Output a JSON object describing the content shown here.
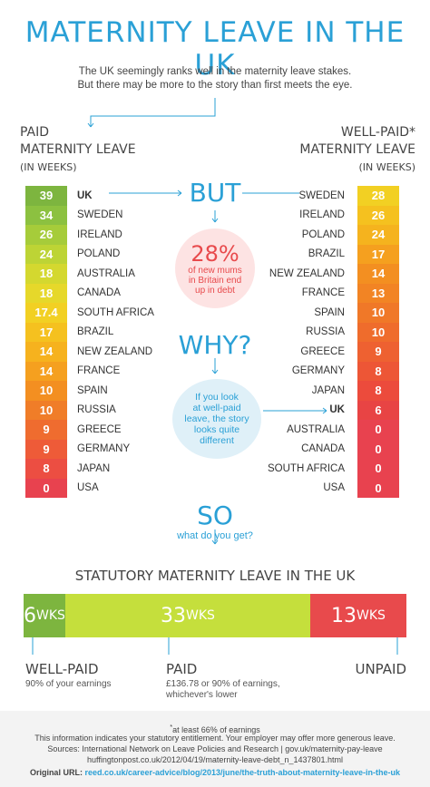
{
  "title": "MATERNITY LEAVE IN THE UK",
  "intro": [
    "The UK seemingly ranks well in the maternity leave stakes.",
    "But there may be more to the story than first meets the eye."
  ],
  "left_header": {
    "line1": "PAID",
    "line2": "MATERNITY LEAVE",
    "line3": "(IN WEEKS)"
  },
  "right_header": {
    "line1": "WELL-PAID*",
    "line2": "MATERNITY LEAVE",
    "line3": "(IN WEEKS)"
  },
  "left_rows": [
    {
      "value": "39",
      "country": "UK",
      "color": "#7db53f"
    },
    {
      "value": "34",
      "country": "SWEDEN",
      "color": "#8cc140"
    },
    {
      "value": "26",
      "country": "IRELAND",
      "color": "#a6cc3a"
    },
    {
      "value": "24",
      "country": "POLAND",
      "color": "#bdd435"
    },
    {
      "value": "18",
      "country": "AUSTRALIA",
      "color": "#d4d82f"
    },
    {
      "value": "18",
      "country": "CANADA",
      "color": "#e6d82a"
    },
    {
      "value": "17.4",
      "country": "SOUTH AFRICA",
      "color": "#f2d023"
    },
    {
      "value": "17",
      "country": "BRAZIL",
      "color": "#f5c11f"
    },
    {
      "value": "14",
      "country": "NEW ZEALAND",
      "color": "#f6b21e"
    },
    {
      "value": "14",
      "country": "FRANCE",
      "color": "#f5a01f"
    },
    {
      "value": "10",
      "country": "SPAIN",
      "color": "#f38f21"
    },
    {
      "value": "10",
      "country": "RUSSIA",
      "color": "#f07d28"
    },
    {
      "value": "9",
      "country": "GREECE",
      "color": "#ef6c2f"
    },
    {
      "value": "9",
      "country": "GERMANY",
      "color": "#ee5b38"
    },
    {
      "value": "8",
      "country": "JAPAN",
      "color": "#ec4e42"
    },
    {
      "value": "0",
      "country": "USA",
      "color": "#e8424f"
    }
  ],
  "right_rows": [
    {
      "value": "28",
      "country": "SWEDEN",
      "color": "#f2d023"
    },
    {
      "value": "26",
      "country": "IRELAND",
      "color": "#f5c11f"
    },
    {
      "value": "24",
      "country": "POLAND",
      "color": "#f5b31e"
    },
    {
      "value": "17",
      "country": "BRAZIL",
      "color": "#f5a01f"
    },
    {
      "value": "14",
      "country": "NEW ZEALAND",
      "color": "#f38f21"
    },
    {
      "value": "13",
      "country": "FRANCE",
      "color": "#f28424"
    },
    {
      "value": "10",
      "country": "SPAIN",
      "color": "#f07828"
    },
    {
      "value": "10",
      "country": "RUSSIA",
      "color": "#ef6c2c"
    },
    {
      "value": "9",
      "country": "GREECE",
      "color": "#ee6131"
    },
    {
      "value": "8",
      "country": "GERMANY",
      "color": "#ed5636"
    },
    {
      "value": "8",
      "country": "JAPAN",
      "color": "#ec4b3c"
    },
    {
      "value": "6",
      "country": "UK",
      "color": "#e84444"
    },
    {
      "value": "0",
      "country": "AUSTRALIA",
      "color": "#e8424f"
    },
    {
      "value": "0",
      "country": "CANADA",
      "color": "#e8424f"
    },
    {
      "value": "0",
      "country": "SOUTH AFRICA",
      "color": "#e8424f"
    },
    {
      "value": "0",
      "country": "USA",
      "color": "#e8424f"
    }
  ],
  "middle": {
    "but": "BUT",
    "stat_big": "28%",
    "stat_text": [
      "of new mums",
      "in Britain end",
      "up in debt"
    ],
    "why": "WHY?",
    "look_text": [
      "If you look",
      "at well-paid",
      "leave, the story",
      "looks quite",
      "different"
    ],
    "so": "SO",
    "so_sub": "what do you get?"
  },
  "statutory": {
    "heading": "STATUTORY MATERNITY LEAVE IN THE UK",
    "segments": [
      {
        "value": "6",
        "unit": "WKS",
        "color": "#7db53f"
      },
      {
        "value": "33",
        "unit": "WKS",
        "color": "#c5df3c"
      },
      {
        "value": "13",
        "unit": "WKS",
        "color": "#e84a4c"
      }
    ],
    "labels": [
      {
        "title": "WELL-PAID",
        "desc": [
          "90% of your earnings"
        ]
      },
      {
        "title": "PAID",
        "desc": [
          "£136.78 or 90% of earnings,",
          "whichever's lower"
        ]
      },
      {
        "title": "UNPAID",
        "desc": []
      }
    ]
  },
  "footer": {
    "note_star": "*",
    "note": "at least 66% of earnings",
    "line1": "This information indicates your statutory entitlement. Your employer may offer more generous leave.",
    "line2": "Sources: International Network on Leave Policies and Research | gov.uk/maternity-pay-leave",
    "line3": "huffingtonpost.co.uk/2012/04/19/maternity-leave-debt_n_1437801.html",
    "url_label": "Original URL:",
    "url": "reed.co.uk/career-advice/blog/2013/june/the-truth-about-maternity-leave-in-the-uk"
  }
}
